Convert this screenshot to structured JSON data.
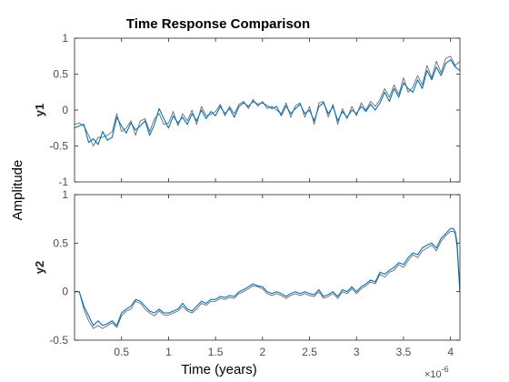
{
  "chart_data": {
    "type": "line",
    "title": "Time Response Comparison",
    "xlabel": "Time (years)",
    "ylabel": "Amplitude",
    "x_exponent_label": "×10",
    "x_exponent_power": "-6",
    "xlim": [
      0.0,
      4.1
    ],
    "xticks": [
      0.5,
      1,
      1.5,
      2,
      2.5,
      3,
      3.5,
      4
    ],
    "xtick_labels": [
      "0.5",
      "1",
      "1.5",
      "2",
      "2.5",
      "3",
      "3.5",
      "4"
    ],
    "grid": false,
    "colors": {
      "series1": "#0072bd",
      "series2": "#6b6b6b",
      "axes": "#262626",
      "tick": "#4d4d4d"
    },
    "subplots": [
      {
        "name": "y1",
        "ylim": [
          -1,
          1
        ],
        "yticks": [
          -1,
          -0.5,
          0,
          0.5,
          1
        ],
        "ytick_labels": [
          "-1",
          "-0.5",
          "0",
          "0.5",
          "1"
        ],
        "series": [
          {
            "color": "#0072bd",
            "x": [
              0.0,
              0.05,
              0.1,
              0.15,
              0.2,
              0.25,
              0.3,
              0.35,
              0.4,
              0.45,
              0.5,
              0.55,
              0.6,
              0.65,
              0.7,
              0.75,
              0.8,
              0.85,
              0.9,
              0.95,
              1.0,
              1.05,
              1.1,
              1.15,
              1.2,
              1.25,
              1.3,
              1.35,
              1.4,
              1.45,
              1.5,
              1.55,
              1.6,
              1.65,
              1.7,
              1.75,
              1.8,
              1.85,
              1.9,
              1.95,
              2.0,
              2.05,
              2.1,
              2.15,
              2.2,
              2.25,
              2.3,
              2.35,
              2.4,
              2.45,
              2.5,
              2.55,
              2.6,
              2.65,
              2.7,
              2.75,
              2.8,
              2.85,
              2.9,
              2.95,
              3.0,
              3.05,
              3.1,
              3.15,
              3.2,
              3.25,
              3.3,
              3.35,
              3.4,
              3.45,
              3.5,
              3.55,
              3.6,
              3.65,
              3.7,
              3.75,
              3.8,
              3.85,
              3.9,
              3.95,
              4.0,
              4.05,
              4.1
            ],
            "y": [
              -0.25,
              -0.22,
              -0.2,
              -0.45,
              -0.4,
              -0.48,
              -0.3,
              -0.42,
              -0.38,
              -0.1,
              -0.22,
              -0.32,
              -0.18,
              -0.28,
              -0.22,
              -0.15,
              -0.35,
              -0.2,
              0.02,
              -0.12,
              -0.25,
              -0.08,
              -0.18,
              -0.1,
              -0.2,
              -0.05,
              -0.15,
              0.0,
              -0.12,
              -0.02,
              -0.08,
              0.05,
              -0.05,
              0.02,
              -0.1,
              0.05,
              0.1,
              0.05,
              0.12,
              0.08,
              0.1,
              0.06,
              0.02,
              0.05,
              -0.08,
              0.06,
              -0.05,
              0.02,
              0.08,
              -0.05,
              0.0,
              -0.15,
              0.05,
              0.1,
              -0.05,
              0.05,
              -0.15,
              -0.02,
              -0.1,
              0.0,
              -0.05,
              0.05,
              -0.02,
              0.08,
              0.0,
              0.1,
              0.25,
              0.12,
              0.3,
              0.18,
              0.38,
              0.3,
              0.25,
              0.42,
              0.3,
              0.55,
              0.42,
              0.6,
              0.48,
              0.65,
              0.7,
              0.6,
              0.55
            ]
          },
          {
            "color": "#6b6b6b",
            "x": [
              0.0,
              0.05,
              0.1,
              0.15,
              0.2,
              0.25,
              0.3,
              0.35,
              0.4,
              0.45,
              0.5,
              0.55,
              0.6,
              0.65,
              0.7,
              0.75,
              0.8,
              0.85,
              0.9,
              0.95,
              1.0,
              1.05,
              1.1,
              1.15,
              1.2,
              1.25,
              1.3,
              1.35,
              1.4,
              1.45,
              1.5,
              1.55,
              1.6,
              1.65,
              1.7,
              1.75,
              1.8,
              1.85,
              1.9,
              1.95,
              2.0,
              2.05,
              2.1,
              2.15,
              2.2,
              2.25,
              2.3,
              2.35,
              2.4,
              2.45,
              2.5,
              2.55,
              2.6,
              2.65,
              2.7,
              2.75,
              2.8,
              2.85,
              2.9,
              2.95,
              3.0,
              3.05,
              3.1,
              3.15,
              3.2,
              3.25,
              3.3,
              3.35,
              3.4,
              3.45,
              3.5,
              3.55,
              3.6,
              3.65,
              3.7,
              3.75,
              3.8,
              3.85,
              3.9,
              3.95,
              4.0,
              4.05,
              4.1
            ],
            "y": [
              -0.2,
              -0.18,
              -0.22,
              -0.35,
              -0.5,
              -0.38,
              -0.38,
              -0.35,
              -0.3,
              -0.05,
              -0.3,
              -0.25,
              -0.15,
              -0.35,
              -0.15,
              -0.12,
              -0.3,
              -0.12,
              -0.05,
              -0.2,
              -0.18,
              -0.02,
              -0.22,
              -0.05,
              -0.15,
              0.0,
              -0.2,
              0.05,
              -0.08,
              -0.06,
              -0.02,
              0.08,
              -0.08,
              0.05,
              -0.05,
              0.08,
              0.12,
              0.02,
              0.15,
              0.05,
              0.12,
              0.02,
              0.05,
              0.0,
              -0.05,
              0.1,
              -0.1,
              0.06,
              0.1,
              -0.1,
              0.05,
              -0.2,
              0.1,
              0.12,
              -0.1,
              0.08,
              -0.2,
              0.02,
              -0.12,
              0.05,
              -0.08,
              0.1,
              0.0,
              0.12,
              0.05,
              0.15,
              0.3,
              0.18,
              0.35,
              0.22,
              0.45,
              0.25,
              0.32,
              0.48,
              0.35,
              0.62,
              0.45,
              0.68,
              0.52,
              0.72,
              0.75,
              0.62,
              0.68
            ]
          }
        ]
      },
      {
        "name": "y2",
        "ylim": [
          -0.5,
          1
        ],
        "yticks": [
          -0.5,
          0,
          0.5,
          1
        ],
        "ytick_labels": [
          "-0.5",
          "0",
          "0.5",
          "1"
        ],
        "series": [
          {
            "color": "#0072bd",
            "x": [
              0.0,
              0.05,
              0.1,
              0.15,
              0.2,
              0.25,
              0.3,
              0.35,
              0.4,
              0.45,
              0.5,
              0.55,
              0.6,
              0.65,
              0.7,
              0.75,
              0.8,
              0.85,
              0.9,
              0.95,
              1.0,
              1.05,
              1.1,
              1.15,
              1.2,
              1.25,
              1.3,
              1.35,
              1.4,
              1.45,
              1.5,
              1.55,
              1.6,
              1.65,
              1.7,
              1.75,
              1.8,
              1.85,
              1.9,
              1.95,
              2.0,
              2.05,
              2.1,
              2.15,
              2.2,
              2.25,
              2.3,
              2.35,
              2.4,
              2.45,
              2.5,
              2.55,
              2.6,
              2.65,
              2.7,
              2.75,
              2.8,
              2.85,
              2.9,
              2.95,
              3.0,
              3.05,
              3.1,
              3.15,
              3.2,
              3.25,
              3.3,
              3.35,
              3.4,
              3.45,
              3.5,
              3.55,
              3.6,
              3.65,
              3.7,
              3.75,
              3.8,
              3.85,
              3.9,
              3.95,
              4.0,
              4.03,
              4.05,
              4.07,
              4.1
            ],
            "y": [
              0.0,
              0.0,
              -0.15,
              -0.25,
              -0.35,
              -0.3,
              -0.35,
              -0.33,
              -0.3,
              -0.35,
              -0.22,
              -0.18,
              -0.15,
              -0.08,
              -0.1,
              -0.15,
              -0.2,
              -0.22,
              -0.18,
              -0.22,
              -0.22,
              -0.2,
              -0.18,
              -0.12,
              -0.18,
              -0.2,
              -0.15,
              -0.1,
              -0.12,
              -0.08,
              -0.08,
              -0.05,
              -0.06,
              -0.04,
              -0.05,
              0.0,
              0.02,
              0.05,
              0.08,
              0.06,
              0.05,
              0.0,
              -0.02,
              0.0,
              -0.02,
              -0.05,
              -0.02,
              0.0,
              -0.02,
              0.0,
              -0.02,
              -0.03,
              0.02,
              -0.05,
              -0.03,
              0.0,
              -0.05,
              0.02,
              0.0,
              0.05,
              0.0,
              0.05,
              0.08,
              0.12,
              0.1,
              0.2,
              0.18,
              0.22,
              0.25,
              0.3,
              0.28,
              0.35,
              0.4,
              0.38,
              0.45,
              0.48,
              0.5,
              0.45,
              0.55,
              0.6,
              0.65,
              0.65,
              0.62,
              0.5,
              0.0
            ]
          },
          {
            "color": "#6b6b6b",
            "x": [
              0.0,
              0.05,
              0.1,
              0.15,
              0.2,
              0.25,
              0.3,
              0.35,
              0.4,
              0.45,
              0.5,
              0.55,
              0.6,
              0.65,
              0.7,
              0.75,
              0.8,
              0.85,
              0.9,
              0.95,
              1.0,
              1.05,
              1.1,
              1.15,
              1.2,
              1.25,
              1.3,
              1.35,
              1.4,
              1.45,
              1.5,
              1.55,
              1.6,
              1.65,
              1.7,
              1.75,
              1.8,
              1.85,
              1.9,
              1.95,
              2.0,
              2.05,
              2.1,
              2.15,
              2.2,
              2.25,
              2.3,
              2.35,
              2.4,
              2.45,
              2.5,
              2.55,
              2.6,
              2.65,
              2.7,
              2.75,
              2.8,
              2.85,
              2.9,
              2.95,
              3.0,
              3.05,
              3.1,
              3.15,
              3.2,
              3.25,
              3.3,
              3.35,
              3.4,
              3.45,
              3.5,
              3.55,
              3.6,
              3.65,
              3.7,
              3.75,
              3.8,
              3.85,
              3.9,
              3.95,
              4.0,
              4.03,
              4.05,
              4.07,
              4.1
            ],
            "y": [
              0.0,
              0.0,
              -0.18,
              -0.3,
              -0.38,
              -0.35,
              -0.38,
              -0.35,
              -0.32,
              -0.37,
              -0.25,
              -0.2,
              -0.18,
              -0.1,
              -0.12,
              -0.18,
              -0.22,
              -0.25,
              -0.2,
              -0.24,
              -0.24,
              -0.22,
              -0.2,
              -0.15,
              -0.2,
              -0.22,
              -0.18,
              -0.12,
              -0.14,
              -0.1,
              -0.1,
              -0.07,
              -0.08,
              -0.06,
              -0.07,
              -0.02,
              0.0,
              0.03,
              0.06,
              0.05,
              0.03,
              -0.02,
              -0.04,
              -0.02,
              -0.04,
              -0.07,
              -0.04,
              -0.02,
              -0.04,
              -0.02,
              -0.04,
              -0.05,
              0.0,
              -0.07,
              -0.05,
              -0.02,
              -0.07,
              0.0,
              -0.02,
              0.03,
              -0.02,
              0.03,
              0.06,
              0.1,
              0.08,
              0.18,
              0.15,
              0.2,
              0.22,
              0.28,
              0.25,
              0.32,
              0.38,
              0.35,
              0.42,
              0.45,
              0.48,
              0.42,
              0.52,
              0.58,
              0.62,
              0.62,
              0.6,
              0.45,
              -0.02
            ]
          }
        ]
      }
    ]
  }
}
